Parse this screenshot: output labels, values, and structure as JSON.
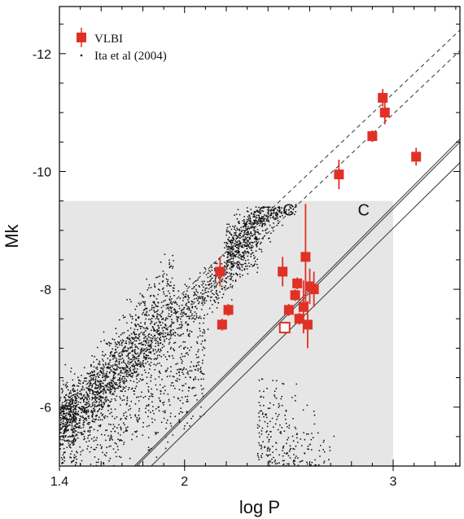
{
  "chart_data": {
    "type": "scatter",
    "title": "",
    "xlabel": "log P",
    "ylabel": "Mk",
    "xlim": [
      1.4,
      3.32
    ],
    "ylim": [
      -5.0,
      -12.8
    ],
    "y_inverted": true,
    "grid": false,
    "legend_position": "top-left",
    "x_ticks": [
      {
        "value": 1.4,
        "label": "1.4"
      },
      {
        "value": 2.0,
        "label": "2"
      },
      {
        "value": 3.0,
        "label": "3"
      }
    ],
    "y_ticks": [
      {
        "value": -6,
        "label": "-6"
      },
      {
        "value": -8,
        "label": "-8"
      },
      {
        "value": -10,
        "label": "-10"
      },
      {
        "value": -12,
        "label": "-12"
      }
    ],
    "shaded_region": {
      "x": [
        1.4,
        3.0
      ],
      "y": [
        -5.0,
        -9.5
      ],
      "color": "#e6e6e6"
    },
    "lines": [
      {
        "label": "C'",
        "style": "dashed",
        "x": [
          1.4,
          3.32
        ],
        "y": [
          -5.6,
          -12.05
        ]
      },
      {
        "label": "",
        "style": "dashed",
        "x": [
          1.4,
          3.32
        ],
        "y": [
          -5.95,
          -12.4
        ]
      },
      {
        "label": "C",
        "style": "solid",
        "x": [
          1.76,
          3.32
        ],
        "y": [
          -5.0,
          -10.55
        ]
      },
      {
        "label": "",
        "style": "solid",
        "x": [
          1.77,
          3.32
        ],
        "y": [
          -5.0,
          -10.5
        ]
      },
      {
        "label": "",
        "style": "solid",
        "x": [
          1.84,
          3.32
        ],
        "y": [
          -5.0,
          -10.15
        ]
      }
    ],
    "line_labels": [
      {
        "text": "C'",
        "x": 2.47,
        "y": -9.25
      },
      {
        "text": "C",
        "x": 2.83,
        "y": -9.25
      }
    ],
    "series": [
      {
        "name": "VLBI",
        "marker": "square",
        "color": "#e03127",
        "points": [
          {
            "x": 2.17,
            "y": -8.3,
            "err": 0.25,
            "filled": true
          },
          {
            "x": 2.18,
            "y": -7.4,
            "err": 0.1,
            "filled": true
          },
          {
            "x": 2.21,
            "y": -7.65,
            "err": 0.1,
            "filled": true
          },
          {
            "x": 2.47,
            "y": -8.3,
            "err": 0.25,
            "filled": true
          },
          {
            "x": 2.48,
            "y": -7.35,
            "err": 0.1,
            "filled": false
          },
          {
            "x": 2.5,
            "y": -7.65,
            "err": 0.1,
            "filled": true
          },
          {
            "x": 2.53,
            "y": -7.9,
            "err": 0.1,
            "filled": true
          },
          {
            "x": 2.54,
            "y": -8.1,
            "err": 0.1,
            "filled": true
          },
          {
            "x": 2.55,
            "y": -7.5,
            "err": 0.1,
            "filled": true
          },
          {
            "x": 2.57,
            "y": -7.7,
            "err": 0.45,
            "filled": true
          },
          {
            "x": 2.58,
            "y": -8.55,
            "err": 0.9,
            "filled": true
          },
          {
            "x": 2.59,
            "y": -7.4,
            "err": 0.4,
            "filled": true
          },
          {
            "x": 2.6,
            "y": -8.05,
            "err": 0.3,
            "filled": true
          },
          {
            "x": 2.62,
            "y": -8.0,
            "err": 0.3,
            "filled": true
          },
          {
            "x": 2.74,
            "y": -9.95,
            "err": 0.25,
            "filled": true
          },
          {
            "x": 2.9,
            "y": -10.6,
            "err": 0.1,
            "filled": true
          },
          {
            "x": 2.95,
            "y": -11.25,
            "err": 0.15,
            "filled": true
          },
          {
            "x": 2.96,
            "y": -11.0,
            "err": 0.2,
            "filled": true
          },
          {
            "x": 3.11,
            "y": -10.25,
            "err": 0.15,
            "filled": true
          }
        ]
      },
      {
        "name": "Ita et al (2004)",
        "marker": "dot",
        "color": "#111111",
        "point_count": 4200,
        "distribution": "dense cloud following the C' and C sequences plus two lower-left sequences at logP 1.4–1.95 (Mk -5.5 to -8.3) and a diffuse scatter below C (logP 2.4–2.7, Mk -5.3 to -7)"
      }
    ]
  }
}
